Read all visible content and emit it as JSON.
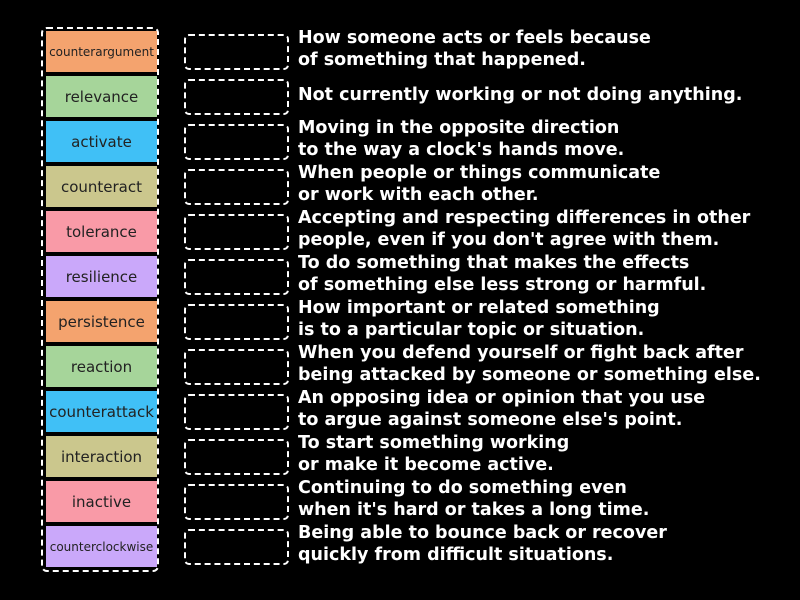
{
  "tiles": [
    {
      "label": "counterargument",
      "color": "#f4a36e"
    },
    {
      "label": "relevance",
      "color": "#a6d59a"
    },
    {
      "label": "activate",
      "color": "#40c0f6"
    },
    {
      "label": "counteract",
      "color": "#cbc78d"
    },
    {
      "label": "tolerance",
      "color": "#f99aa7"
    },
    {
      "label": "resilience",
      "color": "#caa8fa"
    },
    {
      "label": "persistence",
      "color": "#f4a36e"
    },
    {
      "label": "reaction",
      "color": "#a6d59a"
    },
    {
      "label": "counterattack",
      "color": "#40c0f6"
    },
    {
      "label": "interaction",
      "color": "#cbc78d"
    },
    {
      "label": "inactive",
      "color": "#f99aa7"
    },
    {
      "label": "counterclockwise",
      "color": "#caa8fa"
    }
  ],
  "definitions": [
    "How someone acts or feels because\nof something that happened.",
    "Not currently working or not doing anything.",
    "Moving in the opposite direction\nto the way a clock's hands move.",
    "When people or things communicate\nor work with each other.",
    "Accepting and respecting differences in other\npeople, even if you don't agree with them.",
    "To do something that makes the effects\nof something else less strong or harmful.",
    "How important or related something\nis to a particular topic or situation.",
    "When you defend yourself or fight back after\nbeing attacked by someone or something else.",
    "An opposing idea or opinion that you use\nto argue against someone else's point.",
    "To start something working\nor make it become active.",
    "Continuing to do something even\nwhen it's hard or takes a long time.",
    "Being able to bounce back or recover\nquickly from difficult situations."
  ]
}
